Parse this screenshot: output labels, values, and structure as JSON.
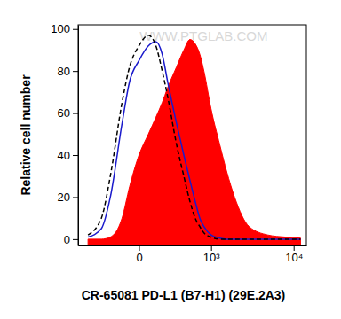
{
  "chart_data": {
    "type": "histogram_overlay",
    "x_label": "CR-65081 PD-L1 (B7-H1) (29E.2A3)",
    "y_label": "Relative cell number",
    "annotations": [
      {
        "text": "WWW.PTGLAB.COM"
      }
    ],
    "log": "x",
    "x": [
      -500,
      -300,
      -200,
      -100,
      -50,
      0,
      50,
      100,
      150,
      200,
      300,
      400,
      500,
      600,
      700,
      800,
      1000,
      1300,
      1600,
      2000,
      3000,
      5000,
      8000,
      12000
    ],
    "series": [
      {
        "type": "area",
        "color": "#ff0000",
        "values": [
          0,
          0,
          1,
          10,
          25,
          40,
          50,
          58,
          65,
          72,
          82,
          90,
          95,
          93,
          88,
          80,
          62,
          45,
          32,
          20,
          6,
          2,
          1,
          0.5
        ]
      },
      {
        "type": "line",
        "color": "#1a1acc",
        "line_style": "solid",
        "values": [
          1,
          5,
          20,
          55,
          75,
          85,
          92,
          94,
          88,
          75,
          55,
          40,
          28,
          18,
          10,
          6,
          2,
          0.5,
          0,
          0,
          0,
          0,
          0,
          0
        ]
      },
      {
        "type": "line",
        "color": "#000000",
        "line_style": "dashed",
        "values": [
          2,
          10,
          30,
          65,
          82,
          92,
          97,
          92,
          80,
          68,
          45,
          30,
          18,
          10,
          6,
          3,
          1,
          0,
          0,
          0,
          0,
          0,
          0,
          0
        ]
      }
    ],
    "xlim": [
      -700,
      14000
    ],
    "xticks": [
      0,
      {
        "value": 1000,
        "label": "10³"
      },
      {
        "value": 10000,
        "label": "10⁴"
      }
    ],
    "ylim": [
      -3,
      102
    ],
    "yticks": [
      0,
      20,
      40,
      60,
      80,
      100
    ]
  }
}
